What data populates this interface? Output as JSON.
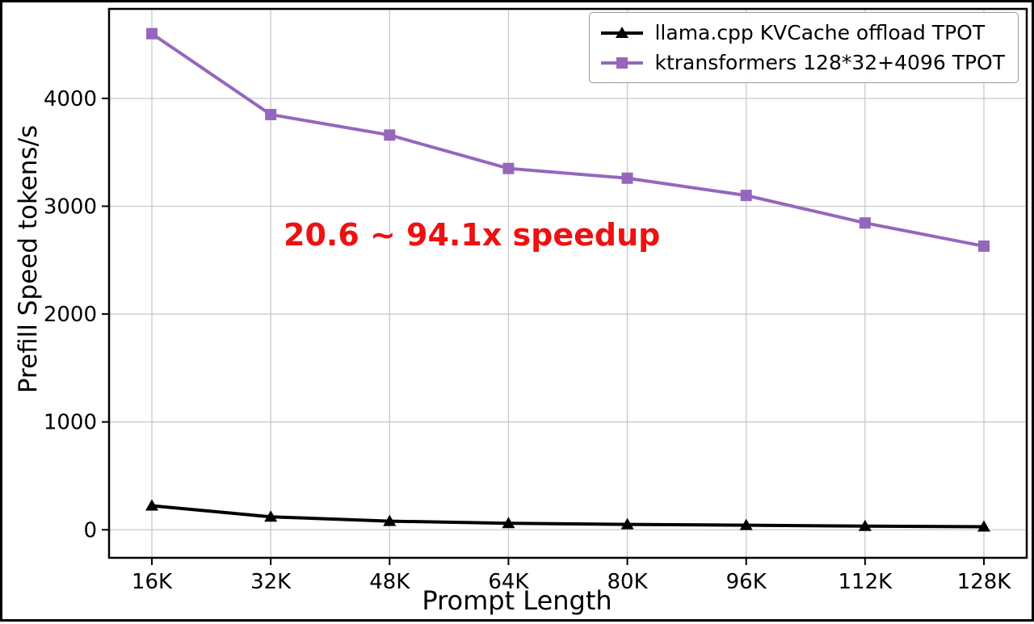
{
  "chart_data": {
    "type": "line",
    "categories": [
      "16K",
      "32K",
      "48K",
      "64K",
      "80K",
      "96K",
      "112K",
      "128K"
    ],
    "series": [
      {
        "name": "llama.cpp KVCache offload TPOT",
        "color": "#000000",
        "marker": "triangle",
        "values": [
          223,
          120,
          80,
          60,
          50,
          42,
          34,
          28
        ]
      },
      {
        "name": "ktransformers 128*32+4096 TPOT",
        "color": "#9467bd",
        "marker": "square",
        "values": [
          4600,
          3850,
          3660,
          3350,
          3260,
          3100,
          2845,
          2630
        ]
      }
    ],
    "title": "",
    "xlabel": "Prompt Length",
    "ylabel": "Prefill Speed tokens/s",
    "yticks": [
      0,
      1000,
      2000,
      3000,
      4000
    ],
    "ylim": [
      -260,
      4830
    ],
    "grid": true,
    "legend_position": "upper right",
    "annotation": {
      "text": "20.6 ~ 94.1x speedup",
      "color": "#ee1111"
    }
  }
}
